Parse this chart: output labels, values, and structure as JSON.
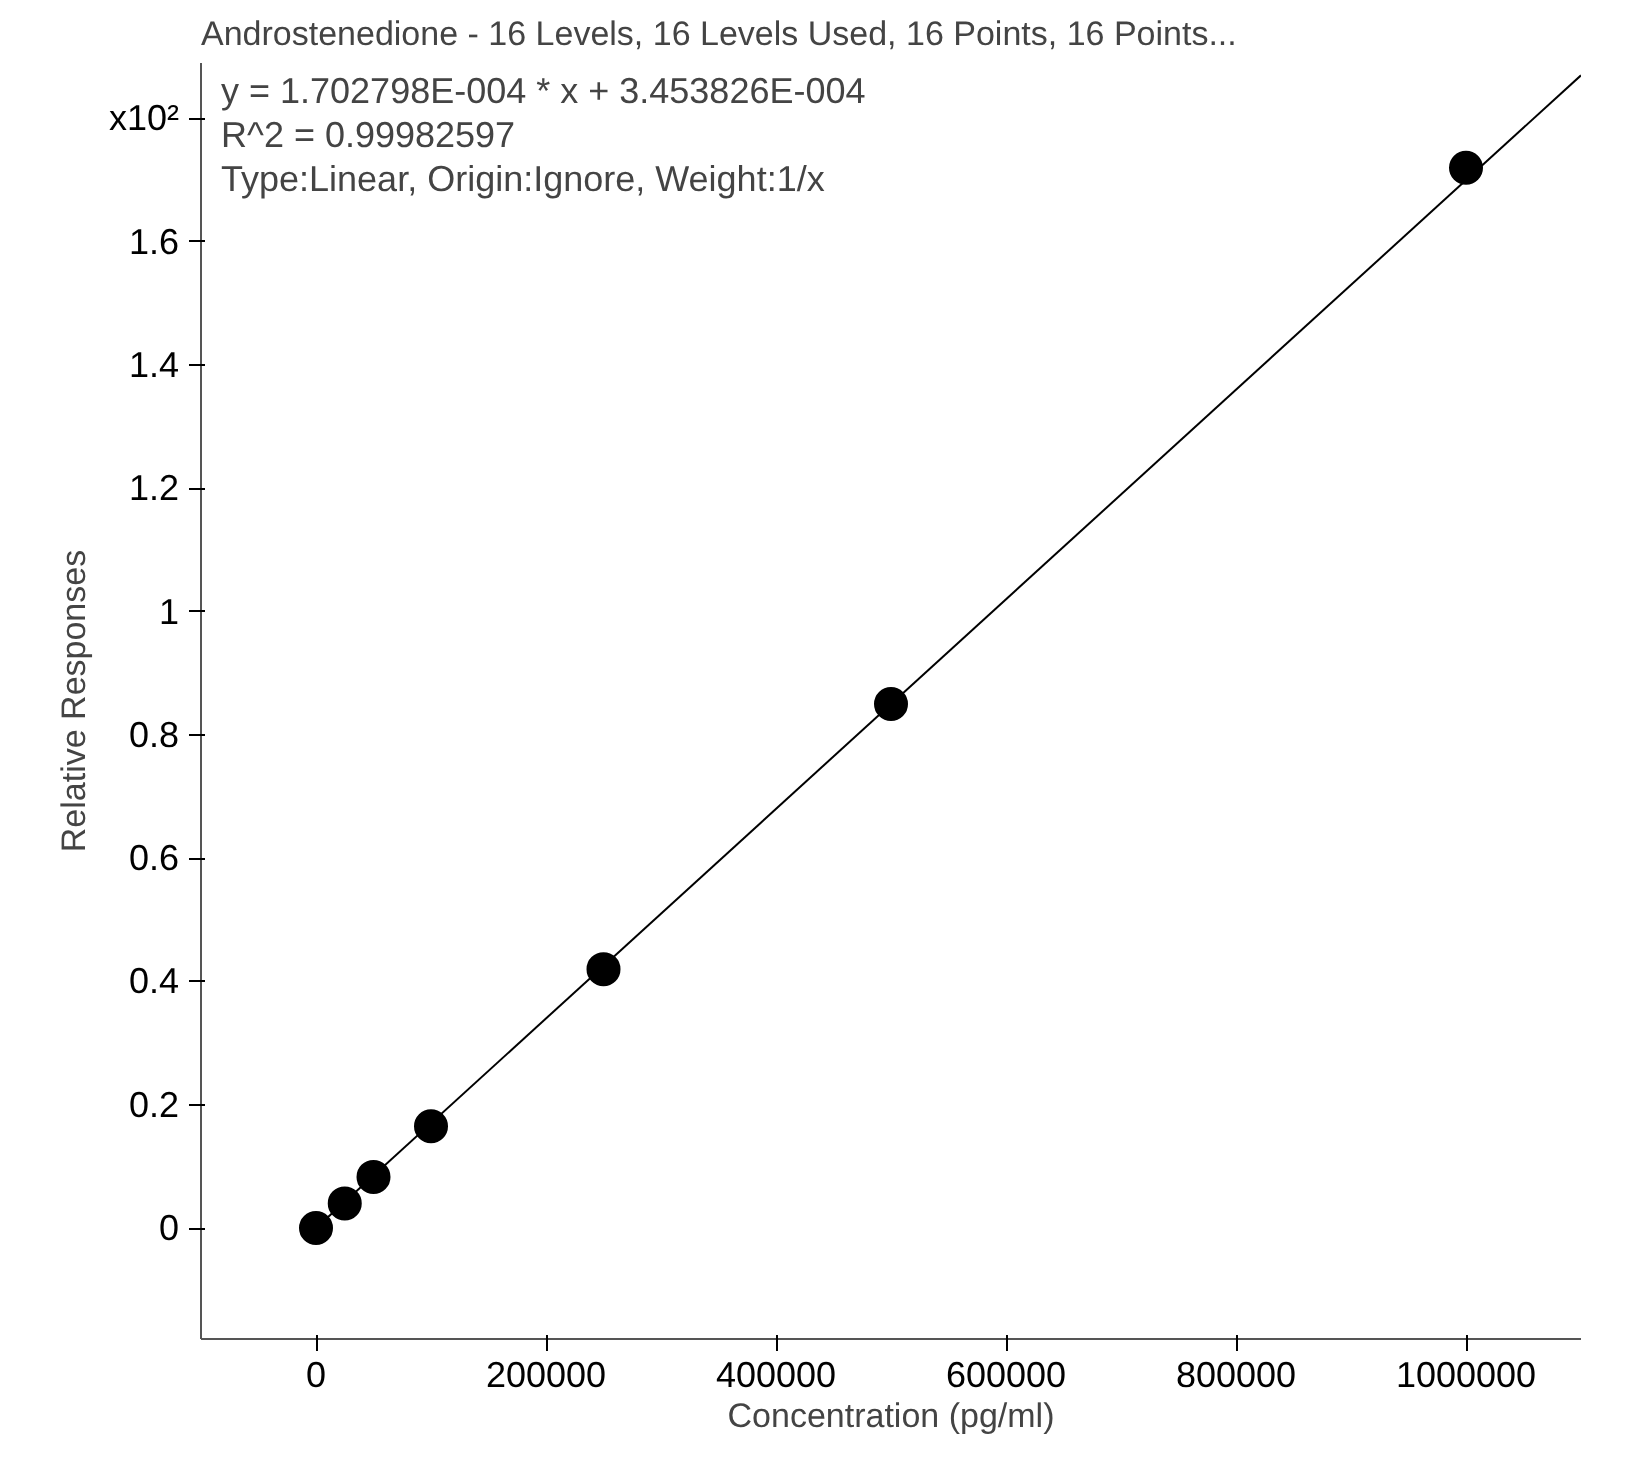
{
  "chart_data": {
    "type": "scatter",
    "title": "Androstenedione - 16 Levels, 16 Levels Used, 16 Points, 16 Points...",
    "xlabel": "Concentration (pg/ml)",
    "ylabel": "Relative Responses",
    "annotations": [
      "y = 1.702798E-004 * x  + 3.453826E-004",
      "R^2 = 0.99982597",
      "Type:Linear, Origin:Ignore, Weight:1/x"
    ],
    "series": [
      {
        "color": "#000000",
        "marker": "circle",
        "x": [
          1000000,
          500000,
          250000,
          100000,
          50000,
          25000,
          0
        ],
        "values": [
          1.72,
          0.85,
          0.42,
          0.165,
          0.083,
          0.04,
          0
        ]
      },
      {
        "type": "line",
        "color": "#000000",
        "x": [
          0,
          1100000
        ],
        "values": [
          0,
          1.87
        ]
      }
    ],
    "grid": false,
    "xlim": [
      -100000,
      1100000
    ],
    "ylim": [
      -0.18,
      1.89
    ],
    "xticks": [
      0,
      200000,
      400000,
      600000,
      800000,
      1000000
    ],
    "yticks": [
      0,
      0.2,
      0.4,
      0.6,
      0.8,
      1,
      1.2,
      1.4,
      1.6,
      {
        "value": 1.8,
        "label": "x10²"
      }
    ]
  }
}
